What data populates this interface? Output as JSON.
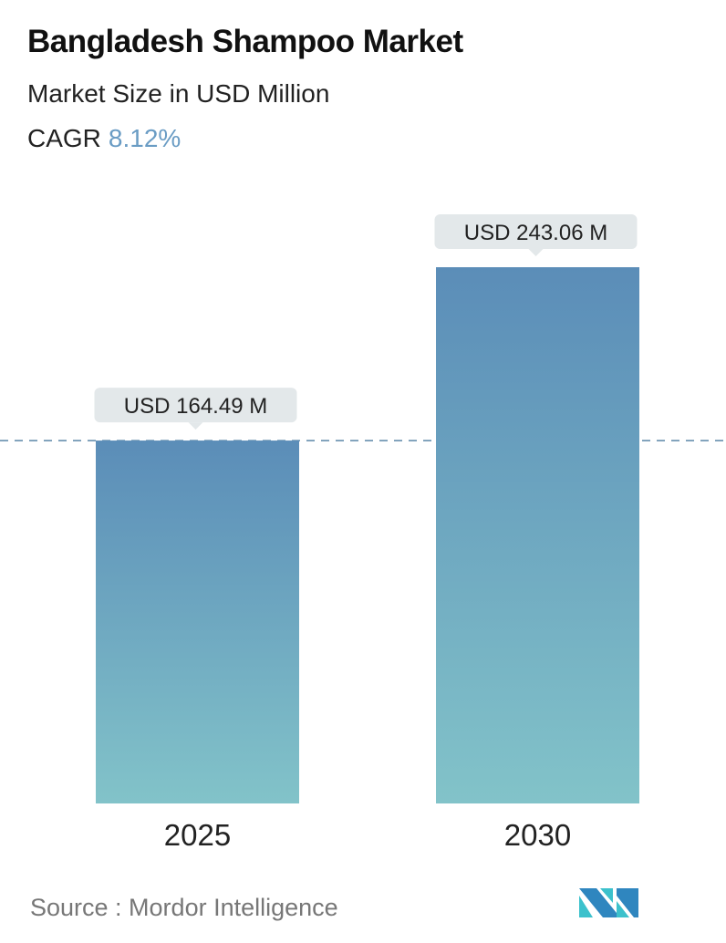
{
  "header": {
    "title": "Bangladesh Shampoo Market",
    "subtitle": "Market Size in USD Million",
    "cagr_label": "CAGR",
    "cagr_value": "8.12%"
  },
  "colors": {
    "accent": "#6a9cc4",
    "bar_top": "#5b8db8",
    "bar_bottom": "#82c3c9",
    "label_bg": "#e3e8ea"
  },
  "chart_data": {
    "type": "bar",
    "categories": [
      "2025",
      "2030"
    ],
    "values": [
      164.49,
      243.06
    ],
    "data_labels": [
      "USD 164.49 M",
      "USD 243.06 M"
    ],
    "reference_line": "dashed at 2025 value",
    "grid": false
  },
  "footer": {
    "source": "Source :  Mordor Intelligence",
    "logo": "Mordor Intelligence logo"
  }
}
